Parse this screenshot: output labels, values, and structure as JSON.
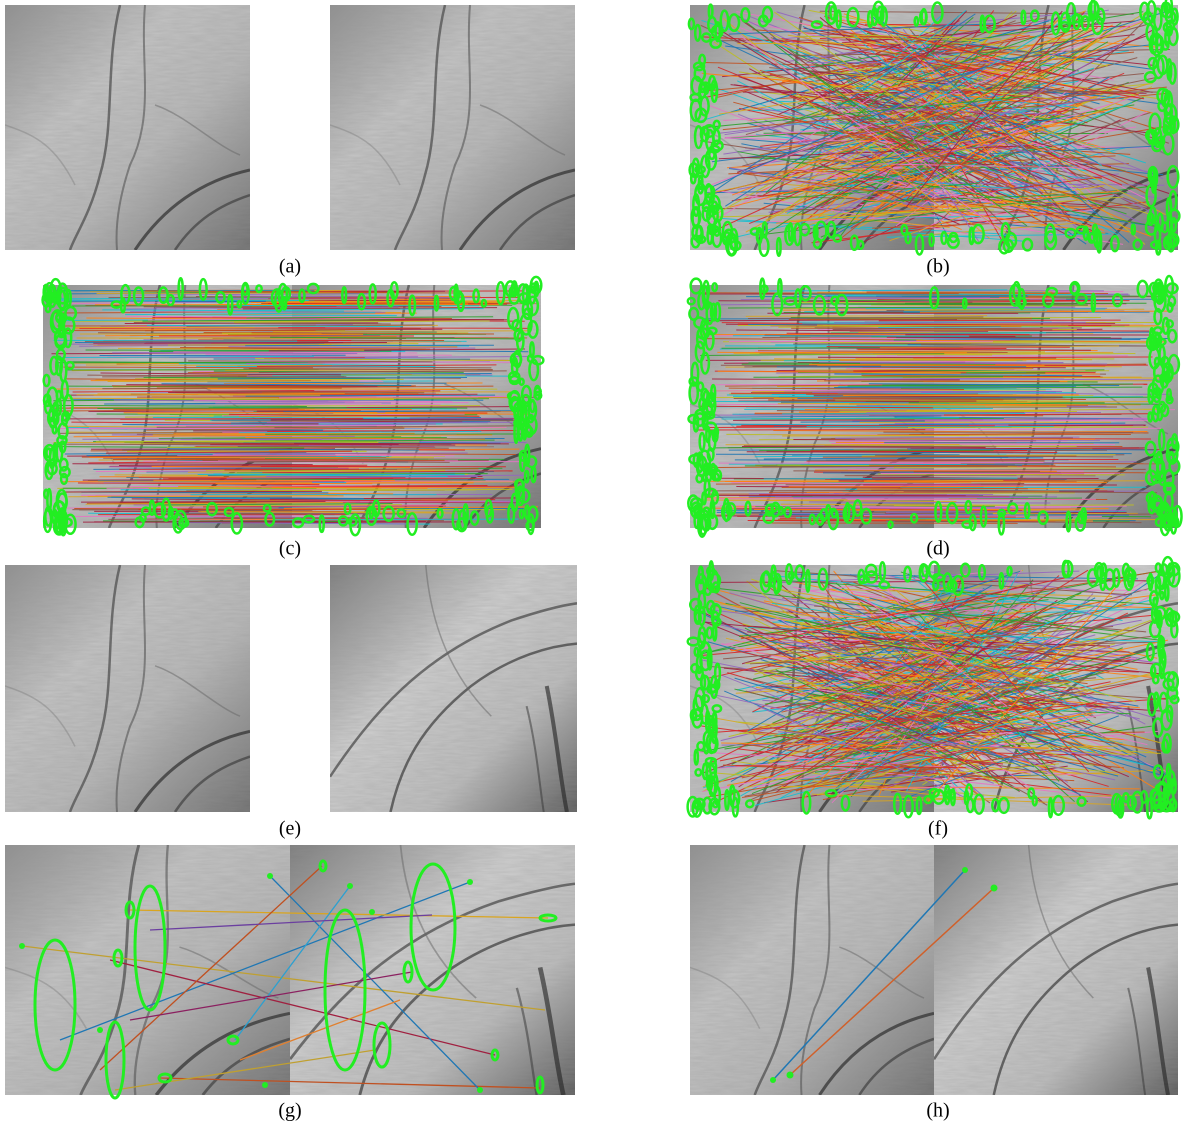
{
  "labels": [
    "(a)",
    "(b)",
    "(c)",
    "(d)",
    "(e)",
    "(f)",
    "(g)",
    "(h)"
  ]
}
